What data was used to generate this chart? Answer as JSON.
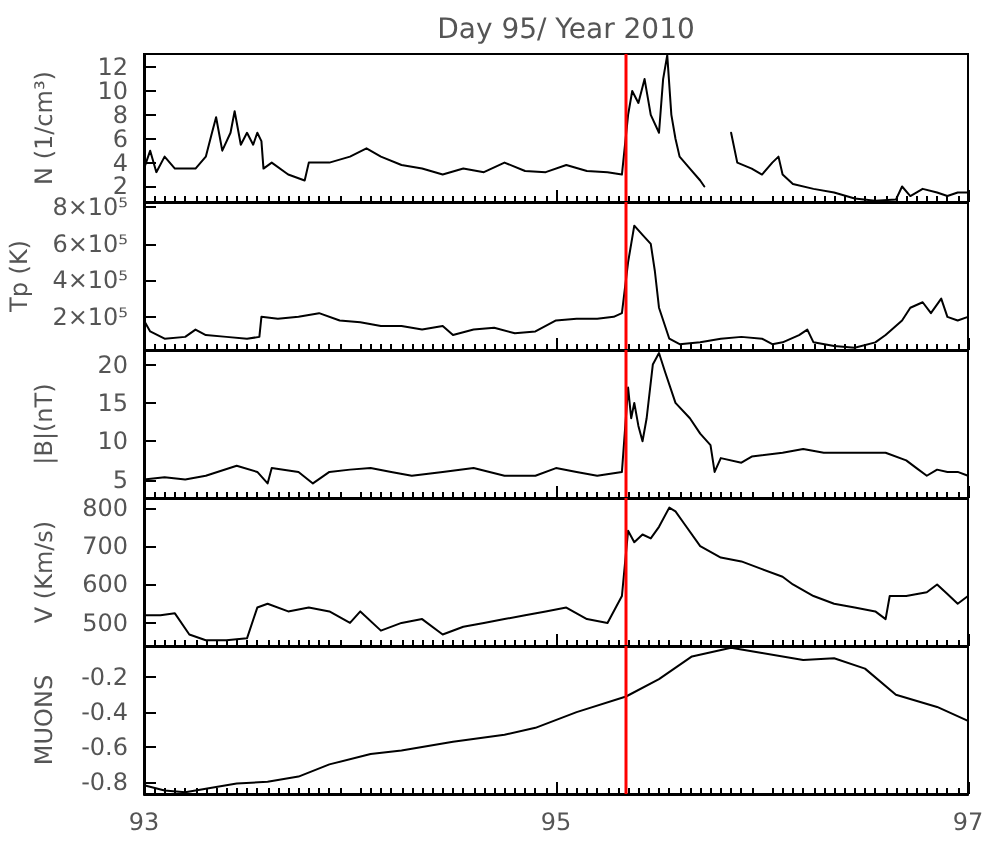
{
  "chart_data": [
    {
      "type": "line",
      "title": "Day 95/ Year 2010",
      "ylabel": "N (1/cm³)",
      "tick_labels": "y",
      "xlim": [
        93,
        97
      ],
      "xticks": [
        93,
        95,
        97
      ],
      "ylim": [
        0.7,
        13.1
      ],
      "yticks": [
        2,
        4,
        6,
        8,
        10,
        12
      ],
      "marker": "none",
      "ref_lines": [
        {
          "axis": "x",
          "value": 95.34,
          "color": "#ff0000"
        }
      ],
      "series": [
        {
          "color": "#000000",
          "x": [
            93.0,
            93.03,
            93.06,
            93.1,
            93.15,
            93.25,
            93.3,
            93.33,
            93.35,
            93.38,
            93.42,
            93.44,
            93.47,
            93.5,
            93.53,
            93.55,
            93.57,
            93.58,
            93.62,
            93.7,
            93.78,
            93.8,
            93.9,
            94.0,
            94.08,
            94.15,
            94.25,
            94.35,
            94.45,
            94.55,
            94.65,
            94.75,
            94.85,
            94.95,
            95.05,
            95.15,
            95.25,
            95.32,
            95.35,
            95.37,
            95.4,
            95.43,
            95.46,
            95.5,
            95.52,
            95.54,
            95.56,
            95.58,
            95.6,
            95.65,
            95.7,
            95.72,
            95.78,
            95.85,
            95.88,
            95.95,
            96.0,
            96.05,
            96.08,
            96.1,
            96.15,
            96.25,
            96.35,
            96.45,
            96.55,
            96.65,
            96.68,
            96.72,
            96.78,
            96.85,
            96.9,
            96.95,
            97.0
          ],
          "values": [
            3.5,
            5,
            3.2,
            4.5,
            3.5,
            3.5,
            4.5,
            6.5,
            7.8,
            5,
            6.5,
            8.3,
            5.5,
            6.5,
            5.5,
            6.5,
            5.8,
            3.5,
            4,
            3,
            2.5,
            4,
            4,
            4.5,
            5.2,
            4.5,
            3.8,
            3.5,
            3.0,
            3.5,
            3.2,
            4,
            3.3,
            3.2,
            3.8,
            3.3,
            3.2,
            3.0,
            8,
            10,
            9,
            11,
            8,
            6.5,
            11,
            13,
            8,
            6,
            4.5,
            3.5,
            2.5,
            2,
            null,
            6.5,
            4,
            3.5,
            3,
            4,
            4.5,
            3,
            2.2,
            1.8,
            1.5,
            1.0,
            0.8,
            0.9,
            2,
            1.2,
            1.8,
            1.5,
            1.2,
            1.5,
            1.5
          ]
        }
      ]
    },
    {
      "type": "line",
      "ylabel": "Tp (K)",
      "tick_labels": "y",
      "xlim": [
        93,
        97
      ],
      "xticks": [
        93,
        95,
        97
      ],
      "ylim": [
        18000,
        830000
      ],
      "yticks": [
        {
          "value": 200000,
          "label": "2×10⁵"
        },
        {
          "value": 400000,
          "label": "4×10⁵"
        },
        {
          "value": 600000,
          "label": "6×10⁵"
        },
        {
          "value": 800000,
          "label": "8×10⁵"
        }
      ],
      "marker": "none",
      "ref_lines": [
        {
          "axis": "x",
          "value": 95.34,
          "color": "#ff0000"
        }
      ],
      "series": [
        {
          "color": "#000000",
          "x": [
            93.0,
            93.03,
            93.1,
            93.2,
            93.25,
            93.3,
            93.4,
            93.5,
            93.56,
            93.57,
            93.65,
            93.75,
            93.85,
            93.95,
            94.05,
            94.15,
            94.25,
            94.35,
            94.45,
            94.5,
            94.6,
            94.7,
            94.8,
            94.9,
            95.0,
            95.1,
            95.2,
            95.28,
            95.32,
            95.35,
            95.38,
            95.42,
            95.46,
            95.48,
            95.5,
            95.55,
            95.6,
            95.7,
            95.8,
            95.9,
            96.0,
            96.05,
            96.1,
            96.18,
            96.22,
            96.25,
            96.35,
            96.45,
            96.55,
            96.6,
            96.68,
            96.72,
            96.78,
            96.82,
            96.87,
            96.9,
            96.95,
            97.0
          ],
          "values": [
            180000,
            120000,
            80000,
            90000,
            130000,
            100000,
            90000,
            80000,
            90000,
            200000,
            190000,
            200000,
            220000,
            180000,
            170000,
            150000,
            150000,
            130000,
            150000,
            100000,
            130000,
            140000,
            110000,
            120000,
            180000,
            190000,
            190000,
            200000,
            220000,
            500000,
            700000,
            650000,
            600000,
            450000,
            250000,
            80000,
            50000,
            60000,
            80000,
            90000,
            80000,
            50000,
            60000,
            100000,
            130000,
            60000,
            40000,
            30000,
            60000,
            100000,
            180000,
            250000,
            280000,
            220000,
            300000,
            200000,
            180000,
            200000
          ]
        }
      ]
    },
    {
      "type": "line",
      "ylabel": "|B|(nT)",
      "tick_labels": "y",
      "xlim": [
        93,
        97
      ],
      "xticks": [
        93,
        95,
        97
      ],
      "ylim": [
        2.6,
        21.9
      ],
      "yticks": [
        5,
        10,
        15,
        20
      ],
      "marker": "none",
      "ref_lines": [
        {
          "axis": "x",
          "value": 95.34,
          "color": "#ff0000"
        }
      ],
      "series": [
        {
          "color": "#000000",
          "x": [
            93.0,
            93.1,
            93.2,
            93.3,
            93.45,
            93.55,
            93.6,
            93.62,
            93.75,
            93.82,
            93.9,
            94.0,
            94.1,
            94.2,
            94.3,
            94.45,
            94.6,
            94.75,
            94.9,
            95.0,
            95.1,
            95.2,
            95.32,
            95.35,
            95.365,
            95.38,
            95.4,
            95.42,
            95.44,
            95.47,
            95.5,
            95.53,
            95.58,
            95.65,
            95.7,
            95.75,
            95.77,
            95.8,
            95.9,
            95.95,
            96.1,
            96.2,
            96.3,
            96.4,
            96.5,
            96.6,
            96.7,
            96.75,
            96.8,
            96.85,
            96.9,
            96.95,
            97.0
          ],
          "values": [
            5,
            5.3,
            5,
            5.5,
            6.8,
            6,
            4.5,
            6.5,
            6,
            4.5,
            6,
            6.3,
            6.5,
            6,
            5.5,
            6,
            6.5,
            5.5,
            5.5,
            6.5,
            6,
            5.5,
            6,
            17,
            13,
            15,
            12,
            10,
            13,
            20,
            21.5,
            19,
            15,
            13,
            11,
            9.5,
            6,
            7.8,
            7.2,
            8,
            8.5,
            9,
            8.5,
            8.5,
            8.5,
            8.5,
            7.5,
            6.5,
            5.5,
            6.3,
            6,
            6,
            5.5
          ]
        }
      ]
    },
    {
      "type": "line",
      "ylabel": "V (Km/s)",
      "tick_labels": "y",
      "xlim": [
        93,
        97
      ],
      "xticks": [
        93,
        95,
        97
      ],
      "ylim": [
        440,
        825
      ],
      "yticks": [
        500,
        600,
        700,
        800
      ],
      "marker": "none",
      "ref_lines": [
        {
          "axis": "x",
          "value": 95.34,
          "color": "#ff0000"
        }
      ],
      "series": [
        {
          "color": "#000000",
          "x": [
            93.0,
            93.08,
            93.15,
            93.22,
            93.3,
            93.4,
            93.5,
            93.55,
            93.6,
            93.7,
            93.8,
            93.9,
            94.0,
            94.05,
            94.15,
            94.25,
            94.35,
            94.45,
            94.55,
            94.65,
            94.75,
            94.85,
            94.95,
            95.05,
            95.15,
            95.25,
            95.32,
            95.35,
            95.38,
            95.42,
            95.46,
            95.5,
            95.55,
            95.58,
            95.62,
            95.7,
            95.8,
            95.9,
            96.0,
            96.1,
            96.15,
            96.25,
            96.35,
            96.45,
            96.55,
            96.6,
            96.62,
            96.7,
            96.8,
            96.85,
            96.9,
            96.95,
            97.0
          ],
          "values": [
            520,
            520,
            525,
            470,
            455,
            455,
            460,
            540,
            550,
            530,
            540,
            530,
            500,
            530,
            480,
            500,
            510,
            470,
            490,
            500,
            510,
            520,
            530,
            540,
            510,
            500,
            570,
            740,
            710,
            730,
            720,
            750,
            800,
            790,
            760,
            700,
            670,
            660,
            640,
            620,
            600,
            570,
            550,
            540,
            530,
            510,
            570,
            570,
            580,
            600,
            575,
            550,
            570
          ]
        }
      ]
    },
    {
      "type": "line",
      "ylabel": "MUONS",
      "xlim": [
        93,
        97
      ],
      "xticks": [
        93,
        95,
        97
      ],
      "ylim": [
        -0.87,
        -0.02
      ],
      "yticks": [
        -0.8,
        -0.6,
        -0.4,
        -0.2
      ],
      "marker": "none",
      "ref_lines": [
        {
          "axis": "x",
          "value": 95.34,
          "color": "#ff0000"
        }
      ],
      "series": [
        {
          "color": "#000000",
          "x": [
            93.0,
            93.1,
            93.2,
            93.3,
            93.45,
            93.6,
            93.75,
            93.9,
            94.1,
            94.25,
            94.5,
            94.75,
            94.9,
            95.1,
            95.34,
            95.5,
            95.66,
            95.85,
            96.0,
            96.2,
            96.35,
            96.5,
            96.65,
            96.85,
            97.0
          ],
          "values": [
            -0.82,
            -0.85,
            -0.86,
            -0.84,
            -0.81,
            -0.8,
            -0.77,
            -0.7,
            -0.64,
            -0.62,
            -0.57,
            -0.53,
            -0.49,
            -0.4,
            -0.31,
            -0.21,
            -0.08,
            -0.03,
            -0.06,
            -0.1,
            -0.09,
            -0.15,
            -0.3,
            -0.37,
            -0.45
          ]
        }
      ]
    }
  ]
}
